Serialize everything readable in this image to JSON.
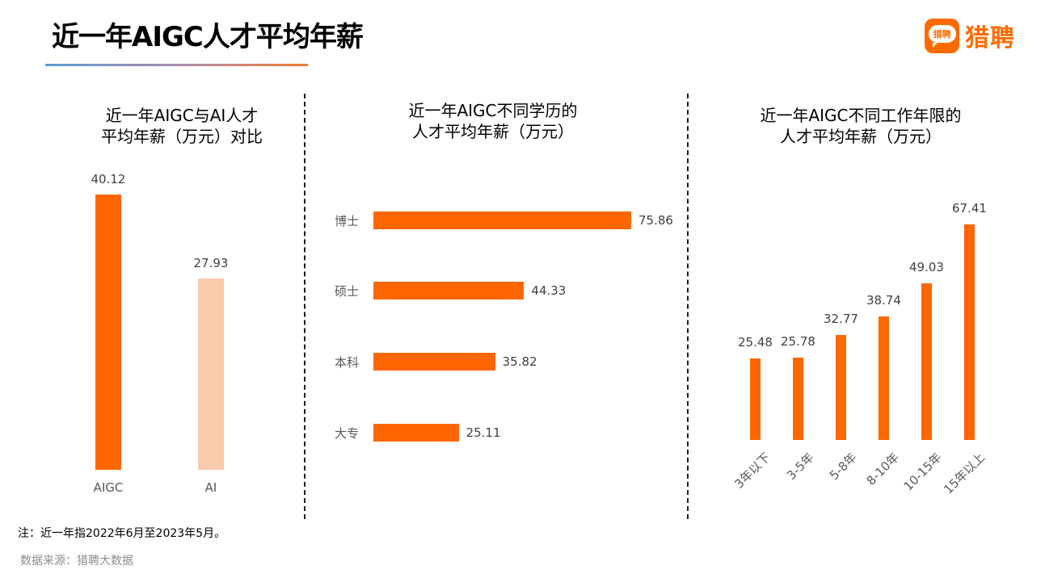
{
  "header": {
    "title": "近一年AIGC人才平均年薪",
    "logo_badge": "猎聘",
    "logo_text": "猎聘"
  },
  "colors": {
    "accent": "#ff6600",
    "secondary": "#f8cbad",
    "underline_start": "#5b9bd5",
    "underline_end": "#ef7d2e"
  },
  "chart_data": [
    {
      "type": "bar",
      "orientation": "vertical",
      "title": "近一年AIGC与AI人才平均年薪（万元）对比",
      "title_lines": [
        "近一年AIGC与AI人才",
        "平均年薪（万元）对比"
      ],
      "categories": [
        "AIGC",
        "AI"
      ],
      "values": [
        40.12,
        27.93
      ],
      "value_labels": [
        "40.12",
        "27.93"
      ],
      "bar_colors": [
        "#ff6600",
        "#f8cbad"
      ],
      "xlabel": "",
      "ylabel": "",
      "grid": false,
      "legend": false
    },
    {
      "type": "bar",
      "orientation": "horizontal",
      "title": "近一年AIGC不同学历的人才平均年薪（万元）",
      "title_lines": [
        "近一年AIGC不同学历的",
        "人才平均年薪（万元）"
      ],
      "categories": [
        "博士",
        "硕士",
        "本科",
        "大专"
      ],
      "values": [
        75.86,
        44.33,
        35.82,
        25.11
      ],
      "value_labels": [
        "75.86",
        "44.33",
        "35.82",
        "25.11"
      ],
      "bar_color": "#ff6600",
      "grid": false,
      "legend": false
    },
    {
      "type": "bar",
      "orientation": "vertical",
      "title": "近一年AIGC不同工作年限的人才平均年薪（万元）",
      "title_lines": [
        "近一年AIGC不同工作年限的",
        "人才平均年薪（万元）"
      ],
      "categories": [
        "3年以下",
        "3-5年",
        "5-8年",
        "8-10年",
        "10-15年",
        "15年以上"
      ],
      "values": [
        25.48,
        25.78,
        32.77,
        38.74,
        49.03,
        67.41
      ],
      "value_labels": [
        "25.48",
        "25.78",
        "32.77",
        "38.74",
        "49.03",
        "67.41"
      ],
      "bar_color": "#ff6600",
      "grid": false,
      "legend": false
    }
  ],
  "footer": {
    "note": "注：近一年指2022年6月至2023年5月。",
    "source": "数据来源：猎聘大数据"
  }
}
